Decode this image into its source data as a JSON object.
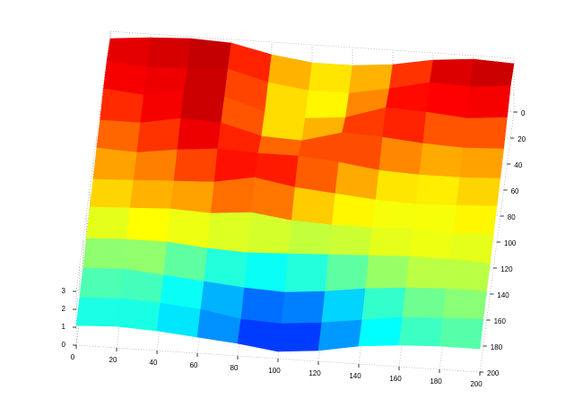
{
  "chart_data": {
    "type": "surface",
    "x": [
      0,
      20,
      40,
      60,
      80,
      100,
      120,
      140,
      160,
      180,
      200
    ],
    "y": [
      0,
      20,
      40,
      60,
      80,
      100,
      120,
      140,
      160,
      180,
      200
    ],
    "z": [
      [
        2.6,
        2.8,
        2.9,
        2.8,
        2.3,
        2.0,
        2.0,
        2.2,
        2.6,
        2.8,
        2.7
      ],
      [
        2.8,
        2.6,
        2.7,
        2.8,
        2.2,
        1.9,
        1.9,
        2.3,
        2.8,
        2.7,
        2.9
      ],
      [
        2.7,
        2.5,
        2.9,
        2.7,
        2.0,
        1.8,
        2.0,
        2.7,
        2.6,
        2.4,
        2.6
      ],
      [
        2.4,
        2.4,
        2.8,
        2.7,
        2.1,
        2.0,
        2.6,
        2.5,
        2.3,
        2.2,
        2.3
      ],
      [
        2.3,
        2.2,
        2.5,
        2.7,
        2.6,
        2.6,
        2.4,
        2.1,
        2.0,
        2.0,
        2.1
      ],
      [
        2.0,
        2.1,
        2.2,
        2.3,
        2.7,
        2.3,
        2.1,
        1.9,
        1.8,
        1.9,
        2.0
      ],
      [
        1.9,
        2.0,
        2.1,
        2.0,
        2.2,
        1.9,
        1.8,
        1.8,
        1.9,
        1.8,
        1.9
      ],
      [
        1.6,
        1.7,
        1.7,
        1.5,
        1.4,
        1.5,
        1.6,
        1.7,
        1.8,
        1.8,
        1.7
      ],
      [
        1.4,
        1.5,
        1.3,
        1.1,
        0.9,
        0.8,
        1.0,
        1.3,
        1.5,
        1.6,
        1.6
      ],
      [
        1.2,
        1.3,
        1.2,
        1.0,
        0.6,
        0.5,
        0.7,
        1.0,
        1.3,
        1.4,
        1.5
      ],
      [
        1.1,
        1.2,
        1.1,
        0.9,
        0.7,
        0.4,
        0.6,
        1.0,
        1.2,
        1.3,
        1.3
      ]
    ],
    "xlim": [
      0,
      200
    ],
    "ylim": [
      0,
      200
    ],
    "zlim": [
      0,
      3
    ],
    "xticks": [
      0,
      20,
      40,
      60,
      80,
      100,
      120,
      140,
      160,
      180,
      200
    ],
    "yticks": [
      0,
      20,
      40,
      60,
      80,
      100,
      120,
      140,
      160,
      180,
      200
    ],
    "zticks": [
      0,
      1,
      2,
      3
    ],
    "colormap": "jet",
    "grid": true
  }
}
